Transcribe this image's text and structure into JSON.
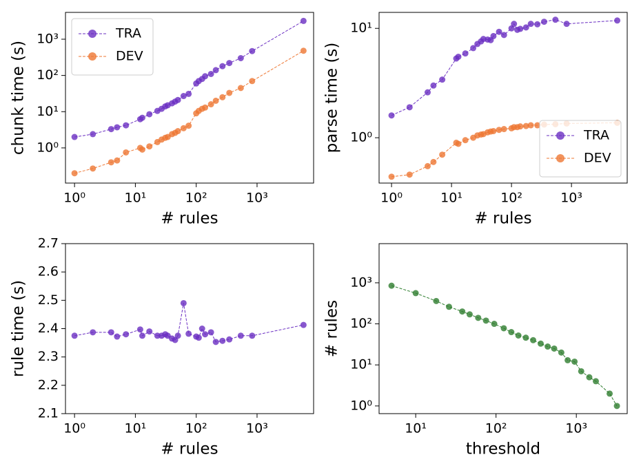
{
  "chart_data": [
    {
      "type": "line",
      "xlabel": "# rules",
      "ylabel": "chunk time (s)",
      "xscale": "log",
      "yscale": "log",
      "legend": "upper left",
      "x": [
        1,
        2,
        4,
        5,
        7,
        12,
        13,
        17,
        23,
        27,
        31,
        34,
        40,
        45,
        50,
        62,
        75,
        100,
        110,
        125,
        140,
        175,
        210,
        270,
        350,
        540,
        830,
        5800
      ],
      "series": [
        {
          "name": "TRA",
          "color": "#6a2ec2",
          "values": [
            2.0,
            2.4,
            3.3,
            3.7,
            4.2,
            6.2,
            6.8,
            8.5,
            10.5,
            12,
            14,
            15,
            17,
            19,
            21,
            27,
            31,
            60,
            70,
            80,
            95,
            110,
            140,
            180,
            220,
            300,
            470,
            3200
          ]
        },
        {
          "name": "DEV",
          "color": "#ee7733",
          "values": [
            0.2,
            0.27,
            0.4,
            0.45,
            0.75,
            1.0,
            0.9,
            1.1,
            1.45,
            1.7,
            1.9,
            2.0,
            2.4,
            2.6,
            2.9,
            3.5,
            4.1,
            9,
            10.5,
            12,
            13,
            16,
            20,
            25,
            33,
            45,
            70,
            480
          ]
        }
      ],
      "xlim": [
        0.71,
        8500
      ],
      "ylim": [
        0.107,
        5500
      ],
      "xticks": [
        {
          "value": 1,
          "label": "10⁰"
        },
        {
          "value": 10,
          "label": "10¹"
        },
        {
          "value": 100,
          "label": "10²"
        },
        {
          "value": 1000,
          "label": "10³"
        }
      ],
      "yticks": [
        {
          "value": 1,
          "label": "10⁰"
        },
        {
          "value": 10,
          "label": "10¹"
        },
        {
          "value": 100,
          "label": "10²"
        },
        {
          "value": 1000,
          "label": "10³"
        }
      ]
    },
    {
      "type": "line",
      "xlabel": "# rules",
      "ylabel": "parse time (s)",
      "xscale": "log",
      "yscale": "log",
      "legend": "lower right",
      "x": [
        1,
        2,
        4,
        5,
        7,
        12,
        13,
        17,
        23,
        27,
        31,
        34,
        40,
        45,
        50,
        62,
        75,
        100,
        110,
        125,
        140,
        175,
        210,
        270,
        350,
        540,
        830,
        5800
      ],
      "series": [
        {
          "name": "TRA",
          "color": "#6a2ec2",
          "values": [
            1.6,
            1.9,
            2.6,
            3.0,
            3.4,
            5.3,
            5.5,
            5.9,
            6.6,
            7.2,
            7.6,
            8.0,
            7.9,
            7.8,
            8.5,
            9.3,
            8.7,
            10.0,
            11.0,
            9.7,
            9.9,
            10.2,
            11.0,
            10.9,
            11.5,
            12.0,
            11.0,
            11.8
          ]
        },
        {
          "name": "DEV",
          "color": "#ee7733",
          "values": [
            0.44,
            0.46,
            0.55,
            0.6,
            0.7,
            0.9,
            0.88,
            0.95,
            1.0,
            1.05,
            1.07,
            1.08,
            1.12,
            1.14,
            1.15,
            1.18,
            1.2,
            1.22,
            1.25,
            1.25,
            1.27,
            1.28,
            1.3,
            1.3,
            1.32,
            1.33,
            1.35,
            1.37
          ]
        }
      ],
      "xlim": [
        0.62,
        8500
      ],
      "ylim": [
        0.385,
        14
      ],
      "xticks": [
        {
          "value": 1,
          "label": "10⁰"
        },
        {
          "value": 10,
          "label": "10¹"
        },
        {
          "value": 100,
          "label": "10²"
        },
        {
          "value": 1000,
          "label": "10³"
        }
      ],
      "yticks": [
        {
          "value": 1,
          "label": "10⁰"
        },
        {
          "value": 10,
          "label": "10¹"
        }
      ]
    },
    {
      "type": "line",
      "xlabel": "# rules",
      "ylabel": "rule time (s)",
      "xscale": "log",
      "yscale": "linear",
      "x": [
        1,
        2,
        4,
        5,
        7,
        12,
        13,
        17,
        23,
        27,
        31,
        34,
        40,
        45,
        50,
        62,
        75,
        100,
        110,
        125,
        140,
        175,
        210,
        270,
        350,
        540,
        830,
        5800
      ],
      "series": [
        {
          "color": "#6a2ec2",
          "values": [
            2.375,
            2.387,
            2.387,
            2.372,
            2.38,
            2.397,
            2.375,
            2.39,
            2.375,
            2.375,
            2.38,
            2.375,
            2.365,
            2.36,
            2.375,
            2.49,
            2.382,
            2.372,
            2.368,
            2.4,
            2.38,
            2.387,
            2.353,
            2.357,
            2.362,
            2.375,
            2.375,
            2.413
          ]
        }
      ],
      "xlim": [
        0.71,
        8500
      ],
      "ylim": [
        2.1,
        2.7
      ],
      "xticks": [
        {
          "value": 1,
          "label": "10⁰"
        },
        {
          "value": 10,
          "label": "10¹"
        },
        {
          "value": 100,
          "label": "10²"
        },
        {
          "value": 1000,
          "label": "10³"
        }
      ],
      "yticks": [
        2.1,
        2.2,
        2.3,
        2.4,
        2.5,
        2.6,
        2.7
      ]
    },
    {
      "type": "line",
      "xlabel": "threshold",
      "ylabel": "# rules",
      "xscale": "log",
      "yscale": "log",
      "x": [
        5,
        10,
        18,
        26,
        38,
        47,
        60,
        75,
        95,
        125,
        155,
        190,
        235,
        290,
        360,
        440,
        530,
        650,
        780,
        950,
        1150,
        1450,
        1750,
        2600,
        3200
      ],
      "series": [
        {
          "color": "#2e7d2e",
          "values": [
            850,
            560,
            360,
            260,
            200,
            170,
            140,
            120,
            100,
            78,
            63,
            52,
            46,
            40,
            33,
            28,
            25,
            20,
            13,
            12,
            7,
            5,
            4,
            2,
            1
          ]
        }
      ],
      "xlim": [
        3.5,
        4300
      ],
      "ylim": [
        0.65,
        9000
      ],
      "xticks": [
        {
          "value": 10,
          "label": "10¹"
        },
        {
          "value": 100,
          "label": "10²"
        },
        {
          "value": 1000,
          "label": "10³"
        }
      ],
      "yticks": [
        {
          "value": 1,
          "label": "10⁰"
        },
        {
          "value": 10,
          "label": "10¹"
        },
        {
          "value": 100,
          "label": "10²"
        },
        {
          "value": 1000,
          "label": "10³"
        }
      ]
    }
  ]
}
